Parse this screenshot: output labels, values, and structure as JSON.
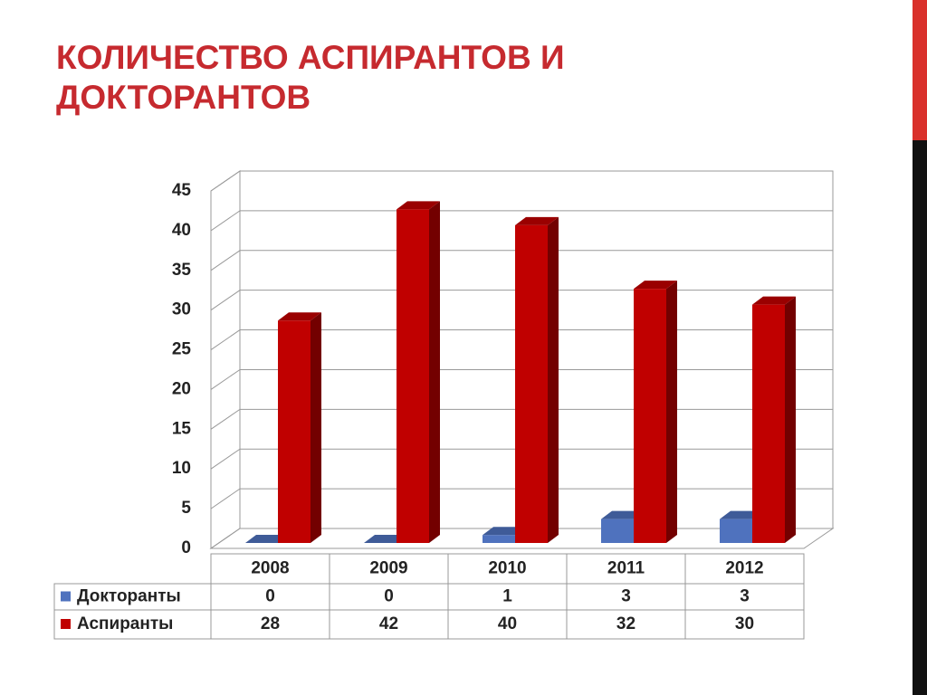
{
  "chart_data": {
    "type": "bar3d",
    "title": "КОЛИЧЕСТВО АСПИРАНТОВ И ДОКТОРАНТОВ",
    "categories": [
      "2008",
      "2009",
      "2010",
      "2011",
      "2012"
    ],
    "series": [
      {
        "name": "Докторанты",
        "color": "#4f72be",
        "values": [
          0,
          0,
          1,
          3,
          3
        ]
      },
      {
        "name": "Аспиранты",
        "color": "#c00000",
        "values": [
          28,
          42,
          40,
          32,
          30
        ]
      }
    ],
    "ylim": [
      0,
      45
    ],
    "yticks": [
      0,
      5,
      10,
      15,
      20,
      25,
      30,
      35,
      40,
      45
    ],
    "grid": true
  }
}
